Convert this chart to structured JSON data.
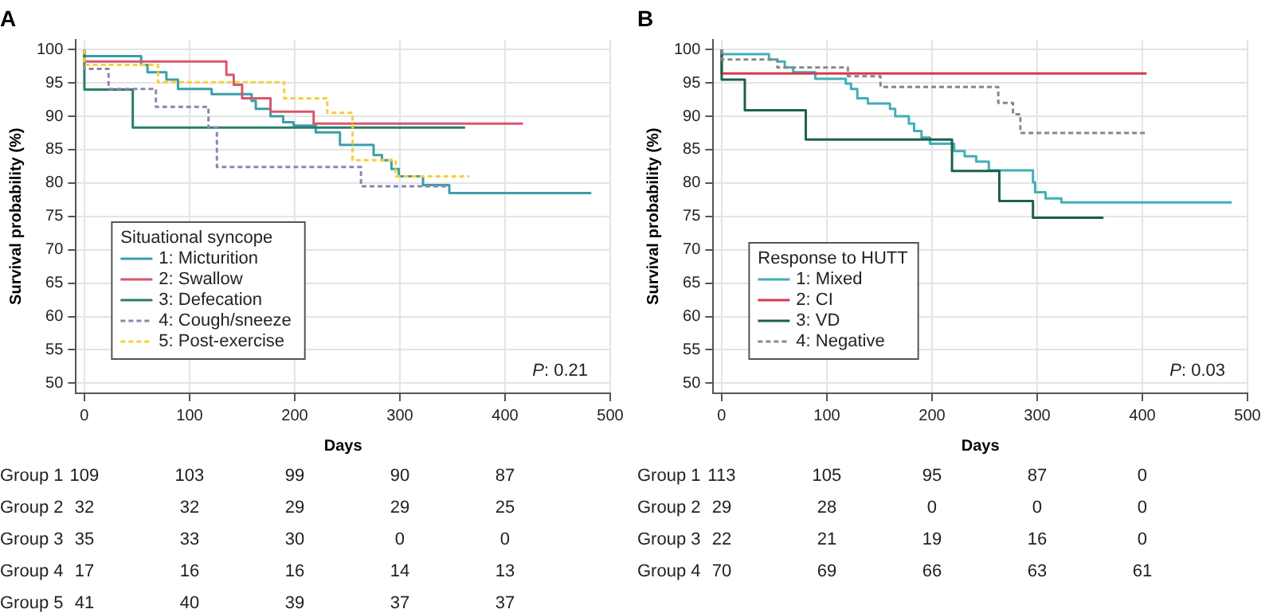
{
  "chart_data": [
    {
      "type": "step",
      "title": "A",
      "xlabel": "Days",
      "ylabel": "Survival probability (%)",
      "legend_title": "Situational syncope",
      "legend": "bottom left",
      "grid": true,
      "xlim": [
        -8,
        500
      ],
      "xticks": [
        0,
        100,
        200,
        300,
        400,
        500
      ],
      "ylim": [
        48.5,
        101.5
      ],
      "yticks": [
        50,
        55,
        60,
        65,
        70,
        75,
        80,
        85,
        90,
        95,
        100
      ],
      "annotations": [
        "P: 0.21"
      ],
      "series": [
        {
          "name": "1: Micturition",
          "color": "#3a9fa8",
          "line_style": "solid",
          "x": [
            0,
            54,
            60,
            78,
            89,
            121,
            159,
            163,
            177,
            189,
            199,
            220,
            243,
            275,
            283,
            292,
            299,
            322,
            347,
            356,
            482
          ],
          "values": [
            100,
            99.0,
            97.7,
            96.6,
            95.5,
            94.1,
            93.3,
            92.3,
            91.1,
            90.0,
            89.1,
            88.6,
            87.6,
            85.7,
            84.2,
            83.4,
            82.1,
            81.0,
            79.7,
            78.5,
            78.5
          ]
        },
        {
          "name": "2: Swallow",
          "color": "#d9566e",
          "line_style": "solid",
          "x": [
            0,
            135,
            142,
            150,
            177,
            218,
            362,
            417
          ],
          "values": [
            100,
            98.2,
            96.2,
            94.7,
            92.7,
            90.7,
            88.9,
            88.9
          ]
        },
        {
          "name": "3: Defecation",
          "color": "#2b7c6c",
          "line_style": "solid",
          "x": [
            0,
            46,
            181,
            362
          ],
          "values": [
            100,
            94.0,
            88.3,
            88.3
          ]
        },
        {
          "name": "4: Cough/sneeze",
          "color": "#8d86ad",
          "line_style": "dashed",
          "x": [
            0,
            23,
            68,
            118,
            126,
            263,
            302,
            347
          ],
          "values": [
            100,
            97.1,
            94.1,
            91.4,
            88.3,
            82.4,
            79.5,
            79.5
          ]
        },
        {
          "name": "5: Post-exercise",
          "color": "#f2d13a",
          "line_style": "dashed",
          "x": [
            0,
            70,
            190,
            231,
            255,
            296,
            308,
            366
          ],
          "values": [
            100,
            97.7,
            95.1,
            92.7,
            90.5,
            83.4,
            81.0,
            81.0
          ]
        }
      ]
    },
    {
      "type": "other",
      "categories": [
        null,
        null,
        null,
        null,
        null
      ],
      "annotations": [
        "Group 1",
        "109",
        "103",
        "99",
        "90",
        "87",
        "Group 2",
        "32",
        "32",
        "29",
        "29",
        "25",
        "Group 3",
        "35",
        "33",
        "30",
        "0",
        "0",
        "Group 4",
        "17",
        "16",
        "16",
        "14",
        "13",
        "Group 5",
        "41",
        "40",
        "39",
        "37",
        "37"
      ]
    },
    {
      "type": "step",
      "title": "B",
      "xlabel": "Days",
      "ylabel": "Survival probability (%)",
      "legend_title": "Response to HUTT",
      "legend": "bottom left",
      "grid": true,
      "xlim": [
        -8,
        500
      ],
      "xticks": [
        0,
        100,
        200,
        300,
        400,
        500
      ],
      "ylim": [
        48.5,
        101.5
      ],
      "yticks": [
        50,
        55,
        60,
        65,
        70,
        75,
        80,
        85,
        90,
        95,
        100
      ],
      "annotations": [
        "P: 0.03"
      ],
      "series": [
        {
          "name": "1: Mixed",
          "color": "#3fb0b6",
          "line_style": "solid",
          "x": [
            0,
            45,
            53,
            60,
            68,
            89,
            118,
            123,
            129,
            139,
            160,
            165,
            178,
            183,
            190,
            198,
            221,
            231,
            242,
            254,
            296,
            298,
            308,
            323,
            348,
            485
          ],
          "values": [
            100,
            99.3,
            98.5,
            98.2,
            97.3,
            96.6,
            95.6,
            94.9,
            94.1,
            92.7,
            91.9,
            91.1,
            90.0,
            88.9,
            87.8,
            86.8,
            85.9,
            84.8,
            84.0,
            83.2,
            81.9,
            80.1,
            78.6,
            77.7,
            77.1,
            77.1
          ]
        },
        {
          "name": "2: CI",
          "color": "#d63a4e",
          "line_style": "solid",
          "x": [
            0,
            69,
            404
          ],
          "values": [
            100,
            96.4,
            96.4
          ]
        },
        {
          "name": "3: VD",
          "color": "#1d5f4d",
          "line_style": "solid",
          "x": [
            0,
            22,
            80,
            219,
            264,
            296,
            348,
            363
          ],
          "values": [
            100,
            95.5,
            90.9,
            86.5,
            81.8,
            77.3,
            74.8,
            74.8
          ]
        },
        {
          "name": "4: Negative",
          "color": "#888888",
          "line_style": "dashed",
          "x": [
            0,
            53,
            120,
            151,
            263,
            277,
            284,
            359,
            405
          ],
          "values": [
            100,
            98.5,
            97.3,
            96.0,
            94.4,
            92.0,
            90.3,
            87.5,
            87.5
          ]
        }
      ]
    },
    {
      "type": "other",
      "categories": [
        null,
        null,
        null,
        null,
        null
      ],
      "annotations": [
        "Group 1",
        "113",
        "105",
        "95",
        "87",
        "0",
        "Group 2",
        "29",
        "28",
        "0",
        "0",
        "0",
        "Group 3",
        "22",
        "21",
        "19",
        "16",
        "0",
        "Group 4",
        "70",
        "69",
        "66",
        "63",
        "61"
      ]
    }
  ]
}
